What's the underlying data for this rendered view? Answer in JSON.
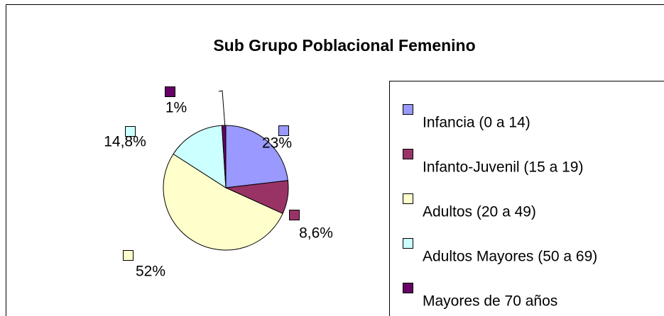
{
  "chart_data": {
    "type": "pie",
    "title": "Sub Grupo Poblacional Femenino",
    "categories": [
      "Infancia (0 a 14)",
      "Infanto-Juvenil (15 a 19)",
      "Adultos (20 a 49)",
      "Adultos Mayores (50 a 69)",
      "Mayores de 70 años"
    ],
    "values": [
      23,
      8.6,
      52,
      14.8,
      1
    ],
    "value_labels": [
      "23%",
      "8,6%",
      "52%",
      "14,8%",
      "1%"
    ],
    "colors": [
      "#9999FF",
      "#993366",
      "#FFFFCC",
      "#CCFFFF",
      "#660066"
    ],
    "legend": "right"
  }
}
